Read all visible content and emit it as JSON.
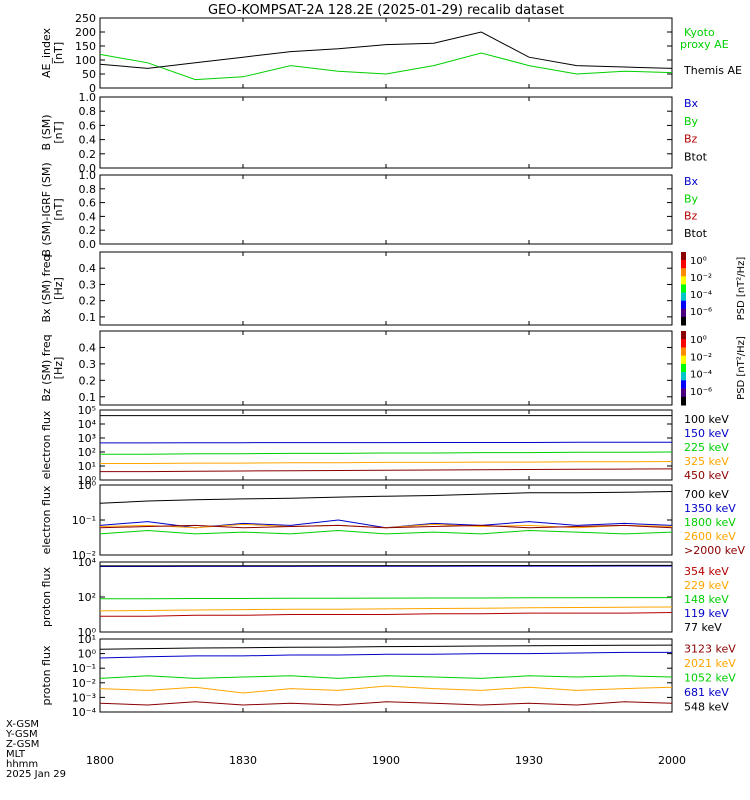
{
  "title": "GEO-KOMPSAT-2A 128.2E (2025-01-29) recalib dataset",
  "footer": {
    "row_labels": [
      "X-GSM",
      "Y-GSM",
      "Z-GSM",
      "MLT",
      "hhmm",
      "2025 Jan 29"
    ],
    "x_ticks": [
      "1800",
      "1830",
      "1900",
      "1930",
      "2000"
    ]
  },
  "colors": {
    "black": "#000000",
    "blue": "#0000c8",
    "green": "#00d000",
    "red": "#b40000",
    "orange": "#ffa500",
    "dkred": "#8b0000"
  },
  "chart_data": [
    {
      "id": "ae",
      "type": "line",
      "ylabel": "AE_index [nT]",
      "ylim": [
        0,
        250
      ],
      "yticks": [
        "0",
        "50",
        "100",
        "150",
        "200",
        "250"
      ],
      "x": [
        "18:00",
        "18:10",
        "18:20",
        "18:30",
        "18:40",
        "18:50",
        "19:00",
        "19:10",
        "19:20",
        "19:30",
        "19:40",
        "19:50",
        "20:00"
      ],
      "series": [
        {
          "name": "Kyoto proxy AE",
          "color": "#00d000",
          "values": [
            120,
            90,
            30,
            40,
            80,
            60,
            50,
            80,
            125,
            80,
            50,
            60,
            55
          ]
        },
        {
          "name": "Themis AE",
          "color": "#000000",
          "values": [
            85,
            70,
            90,
            110,
            130,
            140,
            155,
            160,
            200,
            110,
            80,
            75,
            70
          ]
        }
      ],
      "legend_extra": [
        "proxy AE"
      ]
    },
    {
      "id": "bsm",
      "type": "line",
      "ylabel": "B (SM) [nT]",
      "ylim": [
        0,
        1
      ],
      "yticks": [
        "0.0",
        "0.2",
        "0.4",
        "0.6",
        "0.8",
        "1.0"
      ],
      "legend": [
        {
          "label": "Bx",
          "color": "#0000c8"
        },
        {
          "label": "By",
          "color": "#00d000"
        },
        {
          "label": "Bz",
          "color": "#b40000"
        },
        {
          "label": "Btot",
          "color": "#000000"
        }
      ]
    },
    {
      "id": "bigrf",
      "type": "line",
      "ylabel": "B (SM)-IGRF (SM) [nT]",
      "ylim": [
        0,
        1
      ],
      "yticks": [
        "0.0",
        "0.2",
        "0.4",
        "0.6",
        "0.8",
        "1.0"
      ],
      "legend": [
        {
          "label": "Bx",
          "color": "#0000c8"
        },
        {
          "label": "By",
          "color": "#00d000"
        },
        {
          "label": "Bz",
          "color": "#b40000"
        },
        {
          "label": "Btot",
          "color": "#000000"
        }
      ]
    },
    {
      "id": "bxspec",
      "type": "heatmap",
      "ylabel": "Bx (SM) freq [Hz]",
      "ylim": [
        0.05,
        0.5
      ],
      "yticks": [
        "0.1",
        "0.2",
        "0.3",
        "0.4"
      ],
      "colorbar": {
        "label": "PSD [nT²/Hz]",
        "ticks": [
          "10⁰",
          "10⁻²",
          "10⁻⁴",
          "10⁻⁶"
        ]
      }
    },
    {
      "id": "bzspec",
      "type": "heatmap",
      "ylabel": "Bz (SM) freq [Hz]",
      "ylim": [
        0.05,
        0.5
      ],
      "yticks": [
        "0.1",
        "0.2",
        "0.3",
        "0.4"
      ],
      "colorbar": {
        "label": "PSD [nT²/Hz]",
        "ticks": [
          "10⁰",
          "10⁻²",
          "10⁻⁴",
          "10⁻⁶"
        ]
      }
    },
    {
      "id": "eflux1",
      "type": "line",
      "ylabel": "electron flux",
      "log": true,
      "ylim": [
        1,
        100000
      ],
      "yticks": [
        "10⁰",
        "10¹",
        "10²",
        "10³",
        "10⁴",
        "10⁵"
      ],
      "x": [
        "18:00",
        "18:10",
        "18:20",
        "18:30",
        "18:40",
        "18:50",
        "19:00",
        "19:10",
        "19:20",
        "19:30",
        "19:40",
        "19:50",
        "20:00"
      ],
      "series": [
        {
          "name": "100 keV",
          "color": "#000000",
          "values": [
            40000,
            40000,
            40000,
            40000,
            40000,
            40000,
            40000,
            40000,
            40000,
            40000,
            40000,
            40000,
            40000
          ]
        },
        {
          "name": "150 keV",
          "color": "#0000c8",
          "values": [
            450,
            450,
            460,
            460,
            470,
            470,
            470,
            480,
            480,
            480,
            490,
            490,
            490
          ]
        },
        {
          "name": "225 keV",
          "color": "#00d000",
          "values": [
            70,
            70,
            75,
            75,
            80,
            80,
            85,
            85,
            90,
            90,
            95,
            95,
            100
          ]
        },
        {
          "name": "325 keV",
          "color": "#ffa500",
          "values": [
            15,
            15,
            16,
            16,
            17,
            17,
            18,
            18,
            19,
            19,
            20,
            20,
            21
          ]
        },
        {
          "name": "450 keV",
          "color": "#8b0000",
          "values": [
            4,
            4,
            4.2,
            4.4,
            4.6,
            4.8,
            5,
            5.2,
            5.4,
            5.6,
            5.8,
            6,
            6.2
          ]
        }
      ]
    },
    {
      "id": "eflux2",
      "type": "line",
      "ylabel": "electron flux",
      "log": true,
      "ylim": [
        0.01,
        1
      ],
      "yticks": [
        "10⁻²",
        "10⁻¹",
        "10⁰"
      ],
      "x": [
        "18:00",
        "18:10",
        "18:20",
        "18:30",
        "18:40",
        "18:50",
        "19:00",
        "19:10",
        "19:20",
        "19:30",
        "19:40",
        "19:50",
        "20:00"
      ],
      "series": [
        {
          "name": "700 keV",
          "color": "#000000",
          "values": [
            0.3,
            0.35,
            0.38,
            0.4,
            0.42,
            0.45,
            0.48,
            0.5,
            0.55,
            0.6,
            0.6,
            0.62,
            0.65
          ]
        },
        {
          "name": "1350 keV",
          "color": "#0000c8",
          "values": [
            0.07,
            0.09,
            0.06,
            0.08,
            0.07,
            0.1,
            0.06,
            0.08,
            0.07,
            0.09,
            0.07,
            0.08,
            0.07
          ]
        },
        {
          "name": "1800 keV",
          "color": "#00d000",
          "values": [
            0.04,
            0.05,
            0.04,
            0.045,
            0.04,
            0.05,
            0.04,
            0.045,
            0.04,
            0.05,
            0.045,
            0.04,
            0.045
          ]
        },
        {
          "name": "2600 keV",
          "color": "#ffa500",
          "values": [
            0.065,
            0.07,
            0.06,
            0.075,
            0.065,
            0.07,
            0.06,
            0.075,
            0.065,
            0.07,
            0.06,
            0.07,
            0.065
          ]
        },
        {
          "name": ">2000 keV",
          "color": "#8b0000",
          "values": [
            0.06,
            0.065,
            0.07,
            0.06,
            0.065,
            0.07,
            0.06,
            0.065,
            0.07,
            0.06,
            0.065,
            0.07,
            0.06
          ]
        }
      ]
    },
    {
      "id": "pflux1",
      "type": "line",
      "ylabel": "proton flux",
      "log": true,
      "ylim": [
        1,
        10000
      ],
      "yticks": [
        "10⁰",
        "10²",
        "10⁴"
      ],
      "x": [
        "18:00",
        "18:10",
        "18:20",
        "18:30",
        "18:40",
        "18:50",
        "19:00",
        "19:10",
        "19:20",
        "19:30",
        "19:40",
        "19:50",
        "20:00"
      ],
      "series": [
        {
          "name": "354 keV",
          "color": "#b40000",
          "values": [
            8,
            8,
            9,
            9,
            10,
            10,
            10,
            11,
            11,
            12,
            12,
            12,
            13
          ]
        },
        {
          "name": "229 keV",
          "color": "#ffa500",
          "values": [
            16,
            17,
            18,
            19,
            20,
            20,
            21,
            22,
            23,
            24,
            25,
            26,
            27
          ]
        },
        {
          "name": "148 keV",
          "color": "#00d000",
          "values": [
            80,
            80,
            82,
            82,
            85,
            85,
            86,
            88,
            88,
            90,
            90,
            92,
            92
          ]
        },
        {
          "name": "119 keV",
          "color": "#0000c8",
          "values": [
            5500,
            5500,
            5600,
            5600,
            5600,
            5700,
            5700,
            5700,
            5800,
            5800,
            5800,
            5900,
            5900
          ]
        },
        {
          "name": "77 keV",
          "color": "#000000",
          "values": [
            6000,
            6000,
            6100,
            6100,
            6100,
            6200,
            6200,
            6200,
            6300,
            6300,
            6300,
            6400,
            6400
          ]
        }
      ]
    },
    {
      "id": "pflux2",
      "type": "line",
      "ylabel": "proton flux",
      "log": true,
      "ylim": [
        0.0001,
        10
      ],
      "yticks": [
        "10⁻⁴",
        "10⁻³",
        "10⁻²",
        "10⁻¹",
        "10⁰",
        "10¹"
      ],
      "x": [
        "18:00",
        "18:10",
        "18:20",
        "18:30",
        "18:40",
        "18:50",
        "19:00",
        "19:10",
        "19:20",
        "19:30",
        "19:40",
        "19:50",
        "20:00"
      ],
      "series": [
        {
          "name": "3123 keV",
          "color": "#8b0000",
          "values": [
            0.0004,
            0.0003,
            0.0005,
            0.0003,
            0.0004,
            0.0003,
            0.0005,
            0.0004,
            0.0003,
            0.0004,
            0.0003,
            0.0005,
            0.0004
          ]
        },
        {
          "name": "2021 keV",
          "color": "#ffa500",
          "values": [
            0.004,
            0.003,
            0.005,
            0.002,
            0.004,
            0.003,
            0.006,
            0.004,
            0.003,
            0.005,
            0.003,
            0.004,
            0.005
          ]
        },
        {
          "name": "1052 keV",
          "color": "#00d000",
          "values": [
            0.02,
            0.03,
            0.02,
            0.025,
            0.03,
            0.02,
            0.03,
            0.025,
            0.02,
            0.03,
            0.025,
            0.03,
            0.025
          ]
        },
        {
          "name": "681 keV",
          "color": "#0000c8",
          "values": [
            0.5,
            0.6,
            0.7,
            0.7,
            0.8,
            0.8,
            0.9,
            0.9,
            1.0,
            1.0,
            1.1,
            1.2,
            1.2
          ]
        },
        {
          "name": "548 keV",
          "color": "#000000",
          "values": [
            2,
            2.2,
            2.4,
            2.5,
            2.7,
            2.8,
            3,
            3.1,
            3.3,
            3.4,
            3.6,
            3.7,
            3.8
          ]
        }
      ]
    }
  ]
}
